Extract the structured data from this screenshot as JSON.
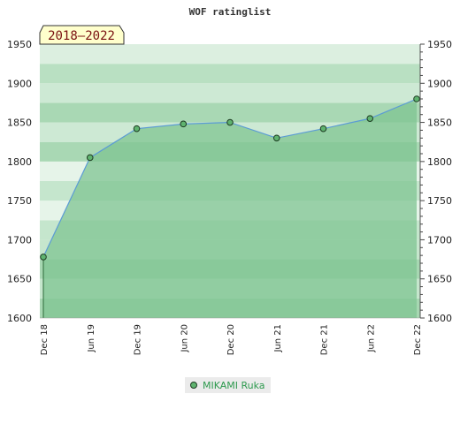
{
  "chart_data": {
    "type": "area",
    "title": "WOF ratinglist",
    "period_badge": "2018–2022",
    "categories": [
      "Dec 18",
      "Jun 19",
      "Dec 19",
      "Jun 20",
      "Dec 20",
      "Jun 21",
      "Dec 21",
      "Jun 22",
      "Dec 22"
    ],
    "series": [
      {
        "name": "MIKAMI Ruka",
        "values": [
          1678,
          1805,
          1842,
          1848,
          1850,
          1830,
          1842,
          1855,
          1880
        ]
      }
    ],
    "ylim": [
      1600,
      1950
    ],
    "yticks": [
      1600,
      1650,
      1700,
      1750,
      1800,
      1850,
      1900,
      1950
    ],
    "axis_both_sides": true,
    "legend_position": "bottom-center",
    "colors": {
      "area_fill": "#7fc492",
      "line": "#5b9bd5",
      "marker_fill": "#5fb36f",
      "marker_stroke": "#1d3b22",
      "legend_text": "#2e9a4e"
    }
  }
}
